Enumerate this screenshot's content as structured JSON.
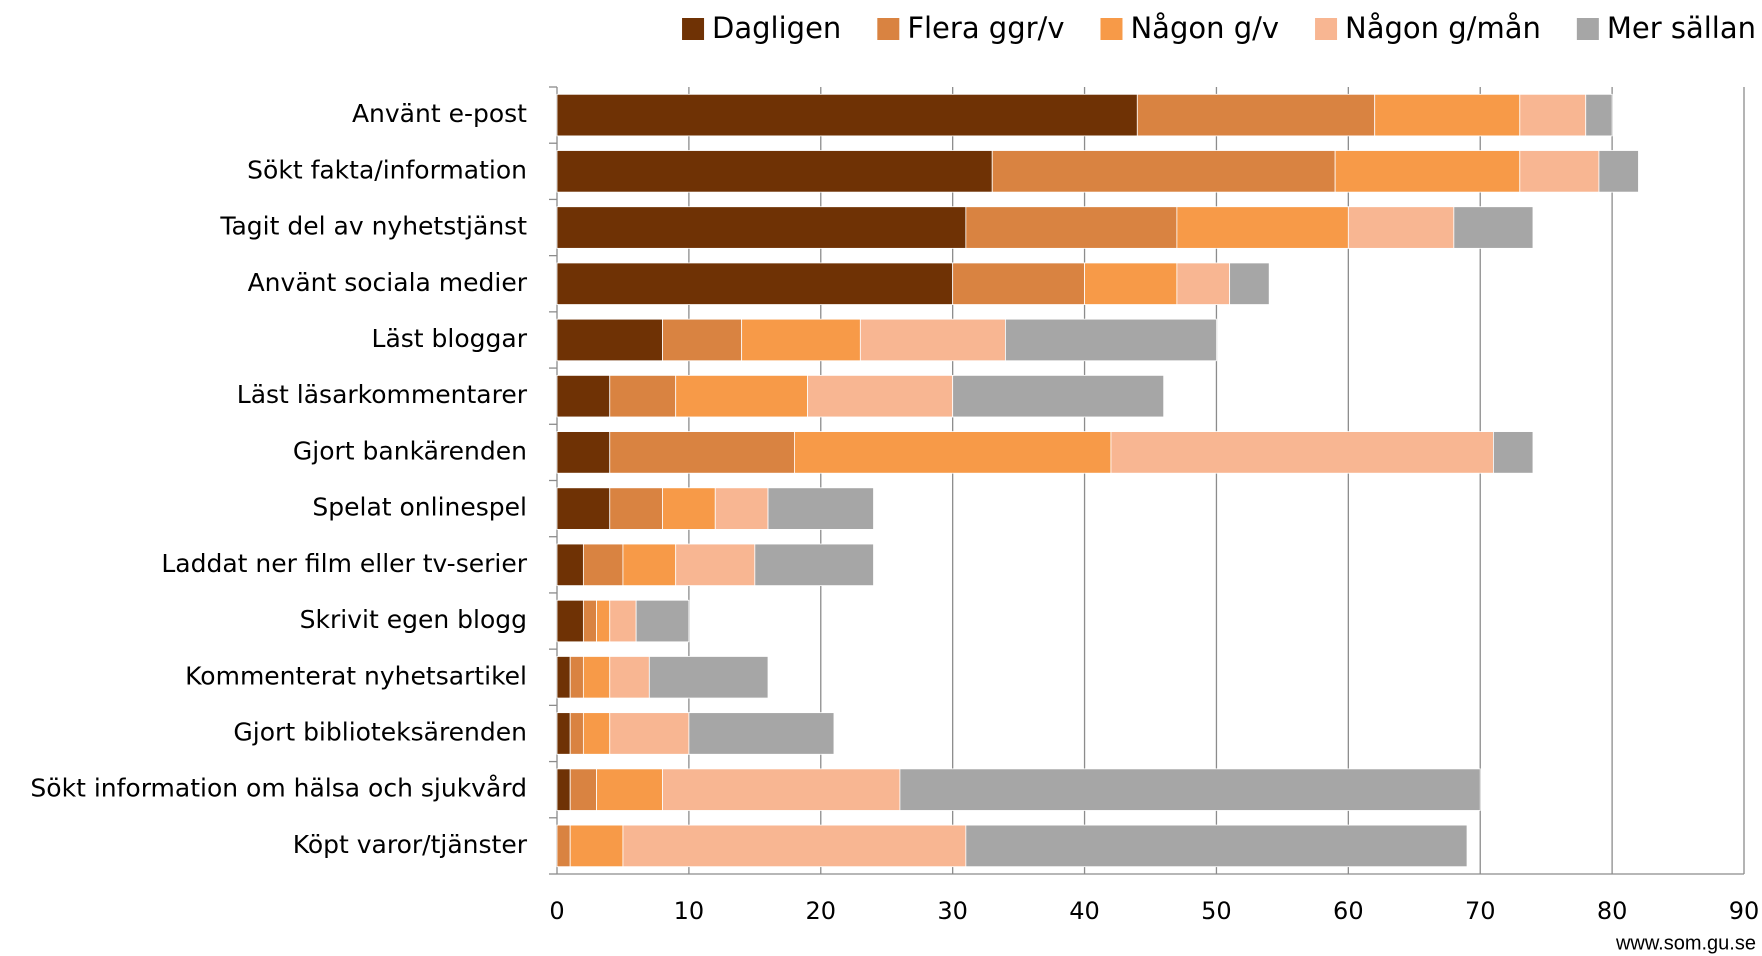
{
  "chart_data": {
    "type": "stacked_barh",
    "categories": [
      "Använt e-post",
      "Sökt fakta/information",
      "Tagit del av nyhetstjänst",
      "Använt sociala medier",
      "Läst bloggar",
      "Läst läsarkommentarer",
      "Gjort bankärenden",
      "Spelat onlinespel",
      "Laddat ner film eller tv-serier",
      "Skrivit egen blogg",
      "Kommenterat nyhetsartikel",
      "Gjort biblioteksärenden",
      "Sökt information om hälsa och sjukvård",
      "Köpt varor/tjänster"
    ],
    "series": [
      {
        "name": "Dagligen",
        "color": "#6f3205",
        "values": [
          44,
          33,
          31,
          30,
          8,
          4,
          4,
          4,
          2,
          2,
          1,
          1,
          1,
          0
        ]
      },
      {
        "name": "Flera ggr/v",
        "color": "#d98341",
        "values": [
          18,
          26,
          16,
          10,
          6,
          5,
          14,
          4,
          3,
          1,
          1,
          1,
          2,
          1
        ]
      },
      {
        "name": "Någon g/v",
        "color": "#f79a48",
        "values": [
          11,
          14,
          13,
          7,
          9,
          10,
          24,
          4,
          4,
          1,
          2,
          2,
          5,
          4
        ]
      },
      {
        "name": "Någon g/mån",
        "color": "#f8b692",
        "values": [
          5,
          6,
          8,
          4,
          11,
          11,
          29,
          4,
          6,
          2,
          3,
          6,
          18,
          26
        ]
      },
      {
        "name": "Mer sällan",
        "color": "#a6a6a6",
        "values": [
          2,
          3,
          6,
          3,
          16,
          16,
          3,
          8,
          9,
          4,
          9,
          11,
          44,
          38
        ]
      }
    ],
    "xlim": [
      0,
      90
    ],
    "xticks": [
      0,
      10,
      20,
      30,
      40,
      50,
      60,
      70,
      80,
      90
    ],
    "grid": true,
    "legend": "top",
    "source": "www.som.gu.se"
  }
}
